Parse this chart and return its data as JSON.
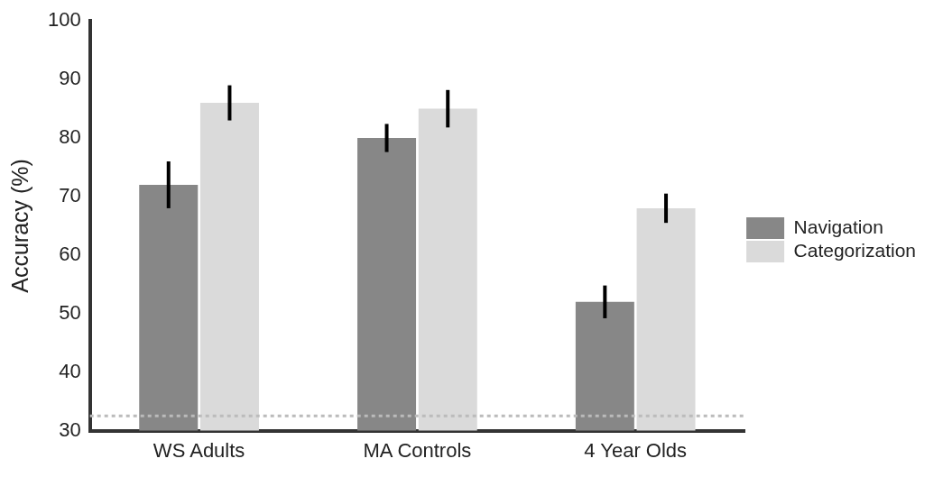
{
  "chart_data": {
    "type": "bar",
    "ylabel": "Accuracy (%)",
    "categories": [
      "WS Adults",
      "MA Controls",
      "4 Year Olds"
    ],
    "series": [
      {
        "name": "Navigation",
        "color": "#878787",
        "values": [
          72,
          80,
          52
        ],
        "errors": [
          4,
          2.4,
          2.8
        ]
      },
      {
        "name": "Categorization",
        "color": "#dadada",
        "values": [
          86,
          85,
          68
        ],
        "errors": [
          3,
          3.2,
          2.5
        ]
      }
    ],
    "ylim": [
      30,
      100
    ],
    "yticks": [
      30,
      40,
      50,
      60,
      70,
      80,
      90,
      100
    ],
    "grid": false,
    "legend": "right",
    "ref_lines": [
      {
        "axis": "y",
        "value": 32.5,
        "color": "#bbbbbb",
        "line_style": "dotted"
      }
    ]
  }
}
